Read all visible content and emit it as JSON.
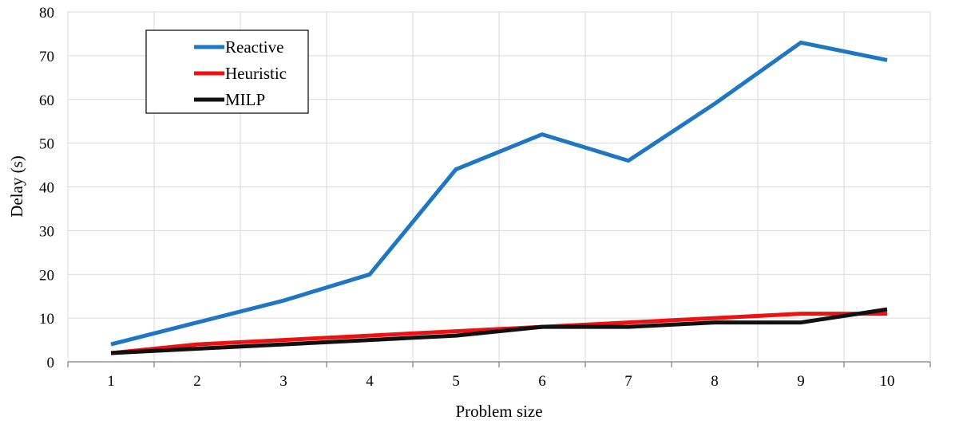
{
  "chart_data": {
    "type": "line",
    "x": [
      1,
      2,
      3,
      4,
      5,
      6,
      7,
      8,
      9,
      10
    ],
    "x_tick_labels": [
      "1",
      "2",
      "3",
      "4",
      "5",
      "6",
      "7",
      "8",
      "9",
      "10"
    ],
    "y_tick_labels": [
      "0",
      "10",
      "20",
      "30",
      "40",
      "50",
      "60",
      "70",
      "80"
    ],
    "series": [
      {
        "name": "Reactive",
        "color": "#1f77c4",
        "values": [
          4,
          9,
          14,
          20,
          44,
          52,
          46,
          59,
          73,
          69
        ]
      },
      {
        "name": "Heuristic",
        "color": "#ee1111",
        "values": [
          2,
          4,
          5,
          6,
          7,
          8,
          9,
          10,
          11,
          11
        ]
      },
      {
        "name": "MILP",
        "color": "#111111",
        "values": [
          2,
          3,
          4,
          5,
          6,
          8,
          8,
          9,
          9,
          12
        ]
      }
    ],
    "xlabel": "Problem size",
    "ylabel": "Delay (s)",
    "ylim": [
      0,
      80
    ],
    "xlim": [
      0.5,
      10.5
    ],
    "grid": true,
    "legend_position": "top-left"
  }
}
